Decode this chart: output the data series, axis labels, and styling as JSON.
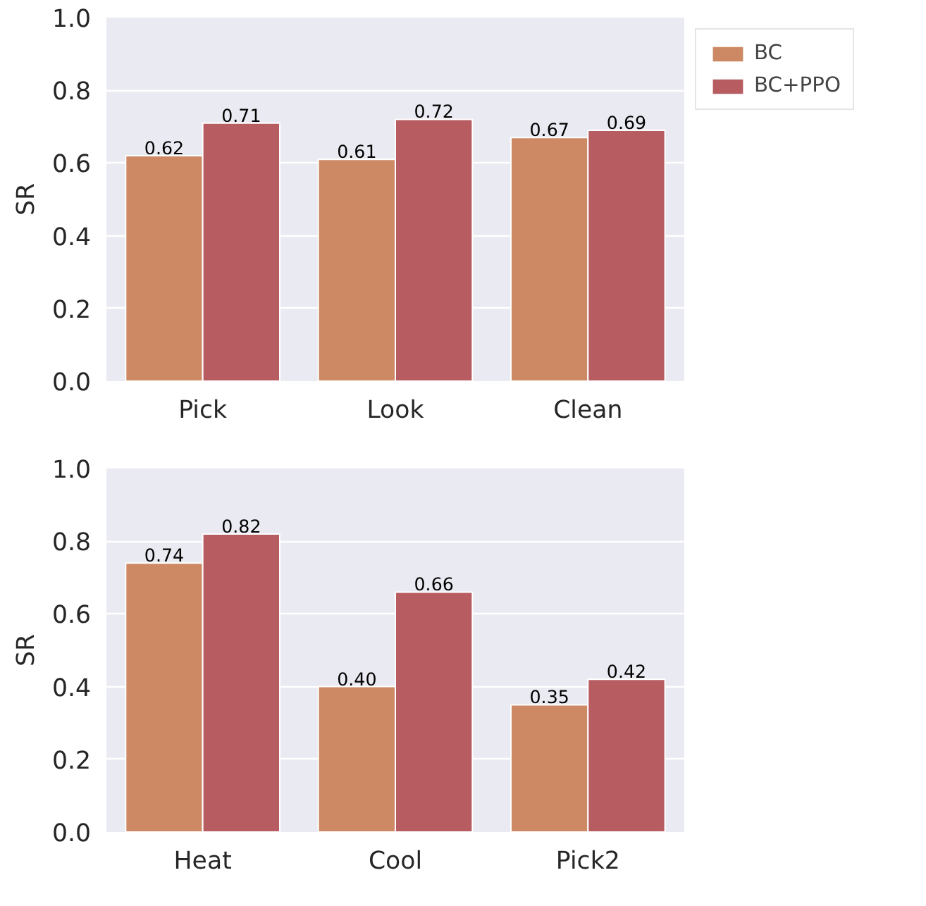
{
  "chart_data": [
    {
      "type": "bar",
      "ylabel": "SR",
      "categories": [
        "Pick",
        "Look",
        "Clean"
      ],
      "series": [
        {
          "name": "BC",
          "color": "#cc8963",
          "values": [
            0.62,
            0.61,
            0.67
          ],
          "value_labels": [
            "0.62",
            "0.61",
            "0.67"
          ]
        },
        {
          "name": "BC+PPO",
          "color": "#b75d62",
          "values": [
            0.71,
            0.72,
            0.69
          ],
          "value_labels": [
            "0.71",
            "0.72",
            "0.69"
          ]
        }
      ],
      "ylim": [
        0,
        1
      ],
      "yticks": [
        {
          "value": 0,
          "label": "0.0"
        },
        {
          "value": 0.2,
          "label": "0.2"
        },
        {
          "value": 0.4,
          "label": "0.4"
        },
        {
          "value": 0.6,
          "label": "0.6"
        },
        {
          "value": 0.8,
          "label": "0.8"
        },
        {
          "value": 1,
          "label": "1.0"
        }
      ],
      "grid": "y",
      "legend": "top right"
    },
    {
      "type": "bar",
      "ylabel": "SR",
      "categories": [
        "Heat",
        "Cool",
        "Pick2"
      ],
      "series": [
        {
          "color": "#cc8963",
          "values": [
            0.74,
            0.4,
            0.35
          ],
          "value_labels": [
            "0.74",
            "0.40",
            "0.35"
          ]
        },
        {
          "color": "#b75d62",
          "values": [
            0.82,
            0.66,
            0.42
          ],
          "value_labels": [
            "0.82",
            "0.66",
            "0.42"
          ]
        }
      ],
      "ylim": [
        0,
        1
      ],
      "yticks": [
        {
          "value": 0,
          "label": "0.0"
        },
        {
          "value": 0.2,
          "label": "0.2"
        },
        {
          "value": 0.4,
          "label": "0.4"
        },
        {
          "value": 0.6,
          "label": "0.6"
        },
        {
          "value": 0.8,
          "label": "0.8"
        },
        {
          "value": 1,
          "label": "1.0"
        }
      ],
      "grid": "y"
    }
  ]
}
